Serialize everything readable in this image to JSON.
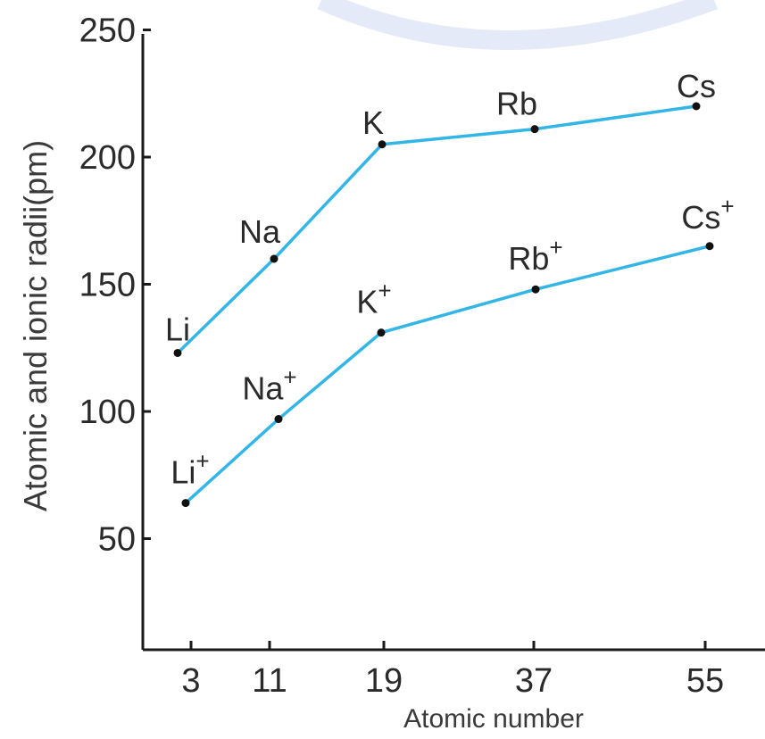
{
  "chart_data": {
    "type": "line",
    "xlabel": "Atomic number",
    "ylabel": "Atomic and ionic radii(pm)",
    "x_ticks": [
      "3",
      "11",
      "19",
      "37",
      "55"
    ],
    "y_ticks": [
      "250",
      "200",
      "150",
      "100",
      "50"
    ],
    "ylim": [
      0,
      250
    ],
    "grid": false,
    "legend": "none",
    "series": [
      {
        "color": "#33b5e5",
        "points": [
          {
            "x": "3",
            "y": 123,
            "label": "Li"
          },
          {
            "x": "11",
            "y": 160,
            "label": "Na"
          },
          {
            "x": "19",
            "y": 205,
            "label": "K"
          },
          {
            "x": "37",
            "y": 211,
            "label": "Rb"
          },
          {
            "x": "55",
            "y": 220,
            "label": "Cs"
          }
        ]
      },
      {
        "color": "#33b5e5",
        "points": [
          {
            "x": "3",
            "y": 64,
            "label": "Li",
            "sup": "+"
          },
          {
            "x": "11",
            "y": 97,
            "label": "Na",
            "sup": "+"
          },
          {
            "x": "19",
            "y": 131,
            "label": "K",
            "sup": "+"
          },
          {
            "x": "37",
            "y": 148,
            "label": "Rb",
            "sup": "+"
          },
          {
            "x": "55",
            "y": 165,
            "label": "Cs",
            "sup": "+"
          }
        ]
      }
    ]
  }
}
